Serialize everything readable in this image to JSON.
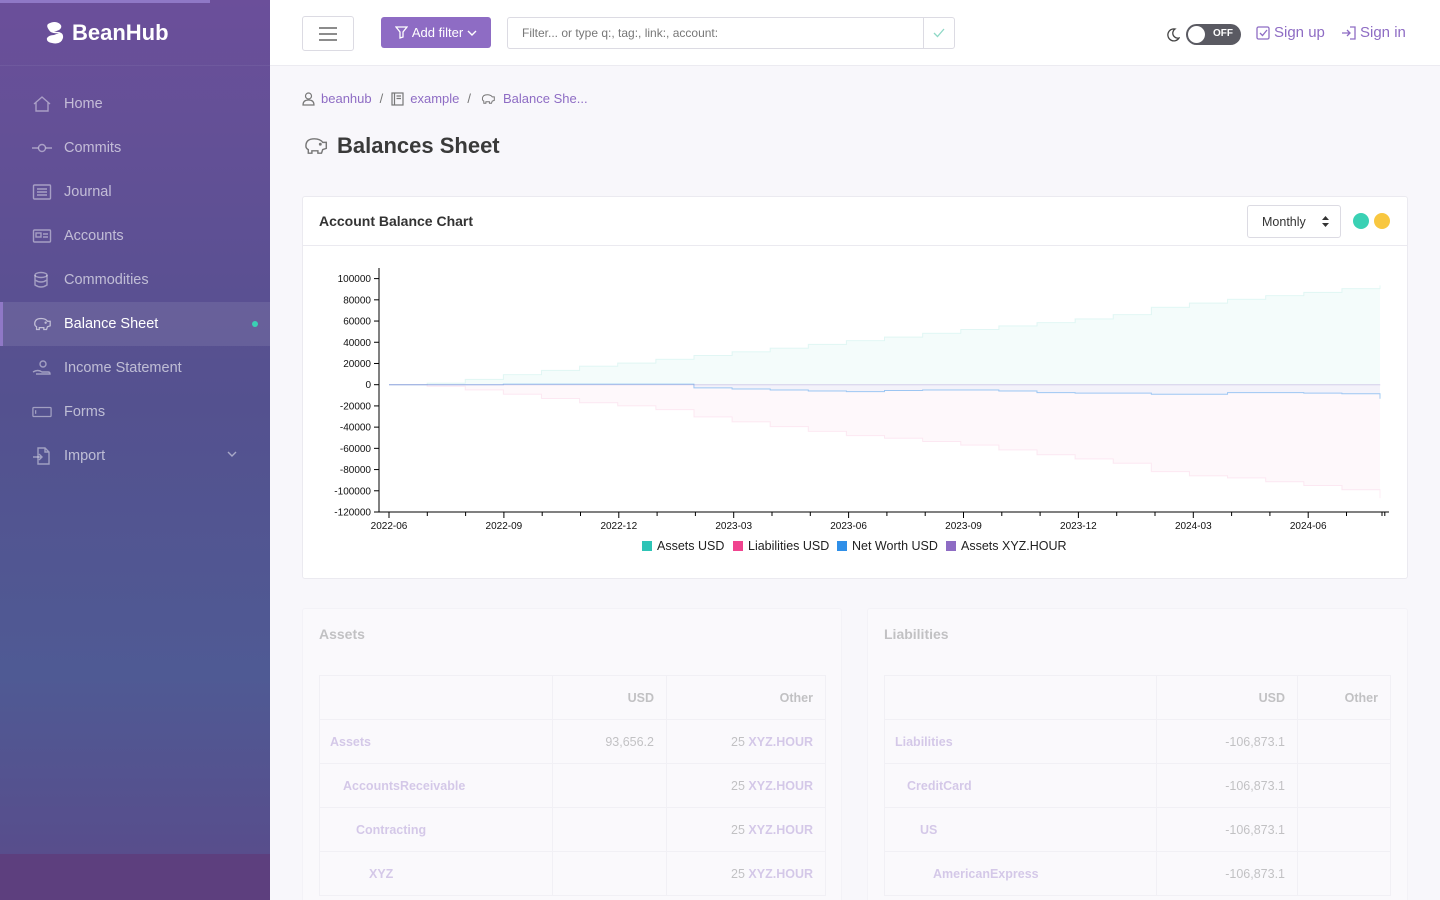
{
  "brand": {
    "name": "BeanHub"
  },
  "sidebar": {
    "items": [
      {
        "label": "Home",
        "icon": "home-icon"
      },
      {
        "label": "Commits",
        "icon": "commit-icon"
      },
      {
        "label": "Journal",
        "icon": "journal-icon"
      },
      {
        "label": "Accounts",
        "icon": "accounts-icon"
      },
      {
        "label": "Commodities",
        "icon": "commodities-icon"
      },
      {
        "label": "Balance Sheet",
        "icon": "piggy-bank-icon",
        "active": true
      },
      {
        "label": "Income Statement",
        "icon": "income-icon"
      },
      {
        "label": "Forms",
        "icon": "forms-icon"
      },
      {
        "label": "Import",
        "icon": "import-icon"
      }
    ]
  },
  "header": {
    "add_filter_label": "Add filter",
    "search_placeholder": "Filter... or type q:, tag:, link:, account:",
    "theme_toggle": "OFF",
    "sign_up": "Sign up",
    "sign_in": "Sign in"
  },
  "breadcrumb": {
    "items": [
      "beanhub",
      "example",
      "Balance She..."
    ],
    "separator": "/"
  },
  "page": {
    "title": "Balances Sheet"
  },
  "chart_card": {
    "title": "Account Balance Chart",
    "period": "Monthly",
    "dots": [
      "#3ad1b4",
      "#f8c740"
    ]
  },
  "chart_data": {
    "type": "area",
    "title": "",
    "xlabel": "",
    "ylabel": "",
    "ylim": [
      -120000,
      100000
    ],
    "yticks": [
      100000,
      80000,
      60000,
      40000,
      20000,
      0,
      -20000,
      -40000,
      -60000,
      -80000,
      -100000,
      -120000
    ],
    "xticks": [
      "2022-06",
      "2022-09",
      "2022-12",
      "2023-03",
      "2023-06",
      "2023-09",
      "2023-12",
      "2024-03",
      "2024-06"
    ],
    "x": [
      "2022-06",
      "2022-07",
      "2022-08",
      "2022-09",
      "2022-10",
      "2022-11",
      "2022-12",
      "2023-01",
      "2023-02",
      "2023-03",
      "2023-04",
      "2023-05",
      "2023-06",
      "2023-07",
      "2023-08",
      "2023-09",
      "2023-10",
      "2023-11",
      "2023-12",
      "2024-01",
      "2024-02",
      "2024-03",
      "2024-04",
      "2024-05",
      "2024-06",
      "2024-07",
      "2024-08"
    ],
    "legend_position": "bottom",
    "series": [
      {
        "name": "Assets USD",
        "color": "#2ec4b6",
        "values": [
          0,
          1500,
          5000,
          9500,
          13500,
          17500,
          20500,
          24000,
          27500,
          31000,
          34500,
          38000,
          41500,
          45000,
          48500,
          52000,
          55500,
          58500,
          62000,
          66000,
          73000,
          77000,
          80500,
          84000,
          87000,
          90500,
          93656.2
        ]
      },
      {
        "name": "Liabilities USD",
        "color": "#f0448f",
        "values": [
          0,
          -1500,
          -5000,
          -9000,
          -13000,
          -17000,
          -20000,
          -23500,
          -30500,
          -35000,
          -39500,
          -44000,
          -48000,
          -50500,
          -53500,
          -57000,
          -61500,
          -66000,
          -70000,
          -74000,
          -82000,
          -86000,
          -88000,
          -91500,
          -95000,
          -99000,
          -106873.1
        ]
      },
      {
        "name": "Net Worth USD",
        "color": "#2f8fe8",
        "values": [
          0,
          0,
          0,
          500,
          500,
          500,
          500,
          500,
          -3000,
          -4000,
          -5000,
          -6000,
          -6500,
          -5500,
          -5000,
          -5000,
          -6000,
          -7500,
          -8000,
          -8000,
          -9000,
          -9000,
          -7500,
          -7500,
          -8000,
          -8500,
          -13216.9
        ]
      },
      {
        "name": "Assets XYZ.HOUR",
        "color": "#8e6cc4",
        "values": [
          0,
          0,
          0,
          0,
          0,
          0,
          0,
          0,
          0,
          0,
          0,
          0,
          0,
          0,
          0,
          0,
          0,
          0,
          0,
          0,
          0,
          0,
          0,
          0,
          0,
          0,
          25
        ]
      }
    ]
  },
  "assets_card": {
    "title": "Assets",
    "columns": [
      "",
      "USD",
      "Other"
    ],
    "rows": [
      {
        "name": "Assets",
        "usd": "93,656.2",
        "qty": "25",
        "unit": "XYZ.HOUR"
      },
      {
        "name": "AccountsReceivable",
        "usd": "",
        "qty": "25",
        "unit": "XYZ.HOUR"
      },
      {
        "name": "Contracting",
        "usd": "",
        "qty": "25",
        "unit": "XYZ.HOUR"
      },
      {
        "name": "XYZ",
        "usd": "",
        "qty": "25",
        "unit": "XYZ.HOUR"
      }
    ]
  },
  "liabilities_card": {
    "title": "Liabilities",
    "columns": [
      "",
      "USD",
      "Other"
    ],
    "rows": [
      {
        "name": "Liabilities",
        "usd": "-106,873.1",
        "qty": "",
        "unit": ""
      },
      {
        "name": "CreditCard",
        "usd": "-106,873.1",
        "qty": "",
        "unit": ""
      },
      {
        "name": "US",
        "usd": "-106,873.1",
        "qty": "",
        "unit": ""
      },
      {
        "name": "AmericanExpress",
        "usd": "-106,873.1",
        "qty": "",
        "unit": ""
      }
    ]
  }
}
